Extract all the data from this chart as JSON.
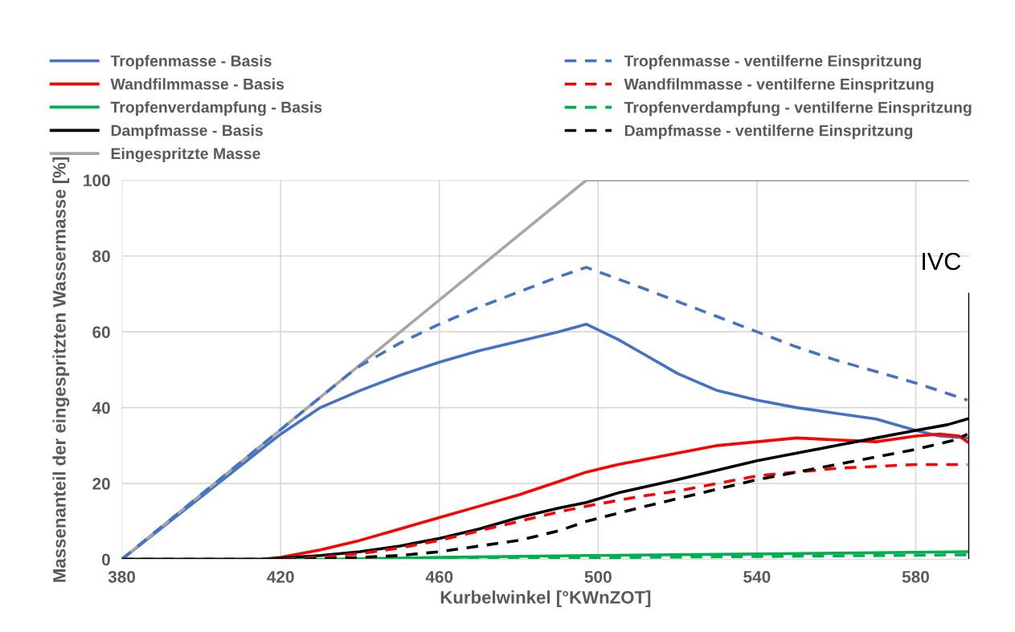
{
  "chart_data": {
    "type": "line",
    "xlabel": "Kurbelwinkel [°KWnZOT]",
    "ylabel": "Massenanteil der eingespritzten Wassermasse [%]",
    "xlim": [
      380,
      593.5
    ],
    "xticks": [
      380,
      420,
      460,
      500,
      540,
      580
    ],
    "ylim": [
      0,
      100
    ],
    "yticks": [
      0,
      20,
      40,
      60,
      80,
      100
    ],
    "grid": true,
    "legend": "top",
    "series": [
      {
        "name": "Tropfenmasse - Basis",
        "color": "#4472c4",
        "line_style": "solid",
        "x": [
          380,
          420,
          430,
          440,
          450,
          460,
          470,
          480,
          490,
          497,
          505,
          510,
          520,
          530,
          540,
          550,
          560,
          570,
          580,
          586,
          593
        ],
        "values": [
          0,
          33,
          40,
          44.5,
          48.5,
          52,
          55,
          57.5,
          60,
          62,
          58,
          55,
          49,
          44.5,
          42,
          40,
          38.5,
          37,
          34,
          32.5,
          32
        ]
      },
      {
        "name": "Wandfilmmasse - Basis",
        "color": "#ff0000",
        "line_style": "solid",
        "x": [
          380,
          415,
          420,
          430,
          440,
          450,
          460,
          470,
          480,
          490,
          497,
          505,
          520,
          530,
          540,
          550,
          560,
          570,
          580,
          586,
          591,
          593
        ],
        "values": [
          0,
          0,
          0.5,
          2.5,
          5,
          8,
          11,
          14,
          17,
          20.5,
          23,
          25,
          28,
          30,
          31,
          32,
          31.5,
          31,
          32.5,
          33,
          32.5,
          31
        ]
      },
      {
        "name": "Tropfenverdampfung - Basis",
        "color": "#00b050",
        "line_style": "solid",
        "x": [
          380,
          430,
          460,
          497,
          540,
          593
        ],
        "values": [
          0,
          0,
          0.5,
          1,
          1.4,
          2
        ]
      },
      {
        "name": "Dampfmasse - Basis",
        "color": "#000000",
        "line_style": "solid",
        "x": [
          380,
          415,
          430,
          440,
          450,
          460,
          470,
          480,
          490,
          497,
          505,
          520,
          530,
          540,
          550,
          560,
          570,
          580,
          588,
          593
        ],
        "values": [
          0,
          0,
          1,
          2,
          3.5,
          5.5,
          8,
          11,
          13.5,
          15,
          17.5,
          21,
          23.5,
          26,
          28,
          30,
          32,
          34,
          35.5,
          37
        ]
      },
      {
        "name": "Eingespritzte Masse",
        "color": "#a6a6a6",
        "line_style": "solid",
        "x": [
          380,
          497,
          593
        ],
        "values": [
          0,
          100,
          100
        ]
      },
      {
        "name": "Tropfenmasse - ventilferne Einspritzung",
        "color": "#4472c4",
        "line_style": "dashed",
        "x": [
          380,
          437,
          440,
          450,
          460,
          470,
          480,
          490,
          497,
          510,
          520,
          530,
          540,
          550,
          560,
          570,
          580,
          593
        ],
        "values": [
          0,
          48.7,
          51,
          57,
          62,
          66.5,
          70.5,
          74.5,
          77,
          72,
          68,
          64,
          60,
          56,
          52.5,
          49.5,
          46.5,
          42
        ]
      },
      {
        "name": "Wandfilmmasse - ventilferne Einspritzung",
        "color": "#ff0000",
        "line_style": "dashed",
        "x": [
          380,
          420,
          430,
          440,
          450,
          460,
          470,
          480,
          490,
          497,
          510,
          520,
          530,
          540,
          550,
          560,
          570,
          580,
          593
        ],
        "values": [
          0,
          0,
          0.5,
          1.5,
          3,
          5,
          7.5,
          10,
          12.5,
          14,
          16.5,
          18,
          20,
          22,
          23,
          24,
          24.5,
          25,
          25
        ]
      },
      {
        "name": "Tropfenverdampfung - ventilferne Einspritzung",
        "color": "#00b050",
        "line_style": "dashed",
        "x": [
          380,
          440,
          480,
          520,
          560,
          593
        ],
        "values": [
          0,
          0,
          0.3,
          0.6,
          0.9,
          1.2
        ]
      },
      {
        "name": "Dampfmasse - ventilferne Einspritzung",
        "color": "#000000",
        "line_style": "dashed",
        "x": [
          380,
          425,
          440,
          450,
          460,
          470,
          480,
          490,
          497,
          510,
          520,
          530,
          540,
          550,
          560,
          570,
          580,
          590,
          593
        ],
        "values": [
          0,
          0,
          0.5,
          1,
          2,
          3.5,
          5,
          7.5,
          10,
          13.5,
          16,
          18.5,
          21,
          23,
          25,
          27,
          29,
          31.5,
          33
        ]
      }
    ],
    "ref_lines": [
      {
        "axis": "x",
        "value": 593.5,
        "label": "IVC",
        "color": "#000000",
        "line_style": "solid"
      }
    ]
  }
}
